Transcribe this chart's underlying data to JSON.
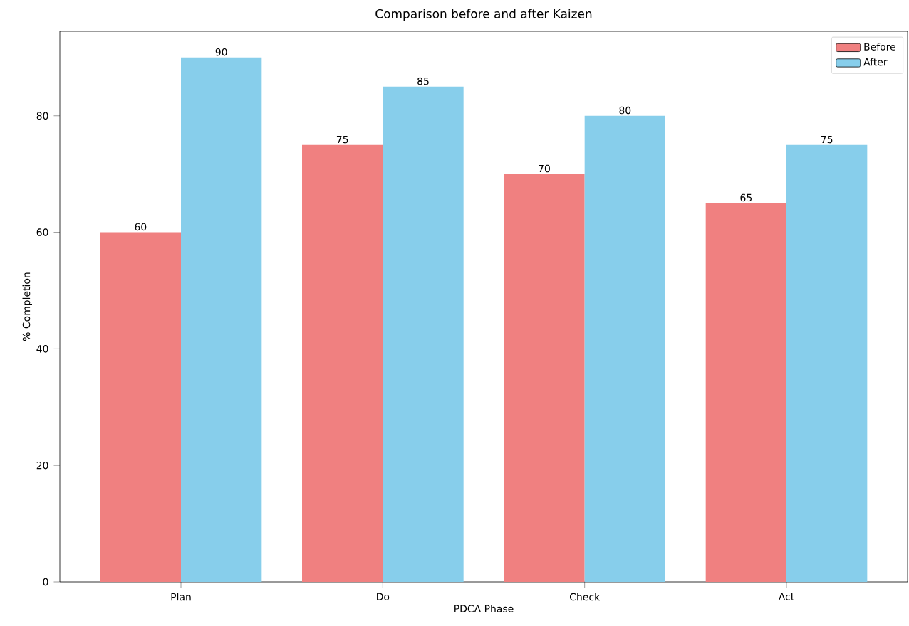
{
  "chart_data": {
    "type": "bar",
    "title": "Comparison before and after Kaizen",
    "xlabel": "PDCA Phase",
    "ylabel": "% Completion",
    "categories": [
      "Plan",
      "Do",
      "Check",
      "Act"
    ],
    "series": [
      {
        "name": "Before",
        "color": "#f08080",
        "values": [
          60,
          75,
          70,
          65
        ]
      },
      {
        "name": "After",
        "color": "#87ceeb",
        "values": [
          90,
          85,
          80,
          75
        ]
      }
    ],
    "ylim": [
      0,
      94.5
    ],
    "yticks": [
      0,
      20,
      40,
      60,
      80
    ],
    "legend": "top right",
    "data_labels": true
  }
}
